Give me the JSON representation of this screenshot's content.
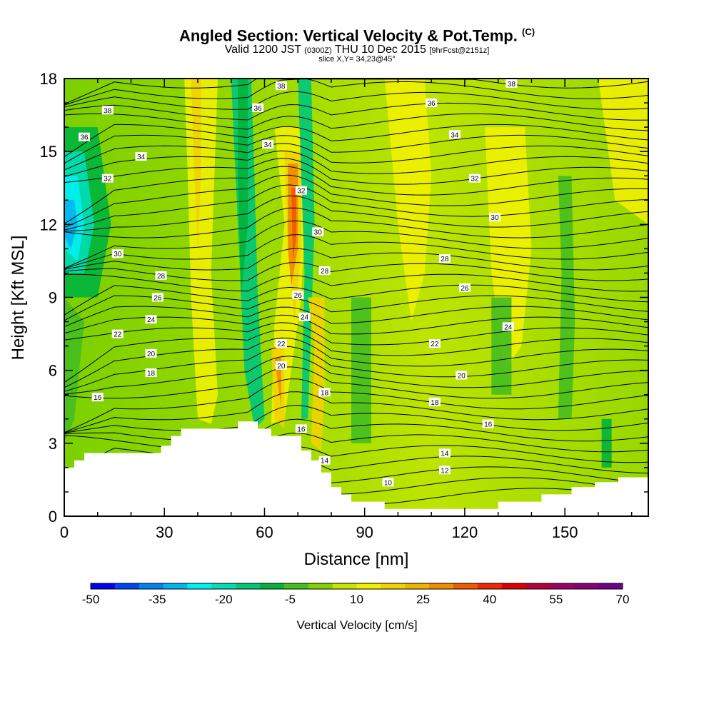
{
  "title": {
    "main": "Angled Section: Vertical Velocity & Pot.Temp.",
    "main_suffix": "(C)",
    "valid_a": "Valid 1200 JST",
    "valid_b": "(0300Z)",
    "valid_c": "THU 10 Dec 2015",
    "valid_d": "[9hrFcst@2151z]",
    "slice": "slice X,Y= 34,23@45°"
  },
  "chart_data": {
    "type": "heatmap",
    "xlabel": "Distance [nm]",
    "ylabel": "Height [Kft MSL]",
    "xlim": [
      0,
      175
    ],
    "ylim": [
      0,
      18
    ],
    "xticks": [
      0,
      30,
      60,
      90,
      120,
      150
    ],
    "yticks": [
      0,
      3,
      6,
      9,
      12,
      15,
      18
    ],
    "colorbar": {
      "label": "Vertical Velocity [cm/s]",
      "range": [
        -50,
        70
      ],
      "tick_labels": [
        -50,
        -35,
        -20,
        -5,
        10,
        25,
        40,
        55,
        70
      ],
      "colors": [
        "#0000f0",
        "#0046f0",
        "#0082f0",
        "#00b4f0",
        "#00f0f0",
        "#00dcb4",
        "#00c878",
        "#00b43c",
        "#46be1e",
        "#82d200",
        "#c8e600",
        "#f0f000",
        "#f0d200",
        "#f0b400",
        "#f08c00",
        "#f05a00",
        "#f02800",
        "#dc0000",
        "#b4003c",
        "#a00064",
        "#8c0078",
        "#6e008c"
      ]
    },
    "terrain": [
      [
        0,
        2
      ],
      [
        3,
        2
      ],
      [
        3,
        2.3
      ],
      [
        6,
        2.3
      ],
      [
        6,
        2.6
      ],
      [
        29,
        2.6
      ],
      [
        29,
        2.9
      ],
      [
        32,
        2.9
      ],
      [
        32,
        3.3
      ],
      [
        35,
        3.3
      ],
      [
        35,
        3.6
      ],
      [
        52,
        3.6
      ],
      [
        52,
        3.9
      ],
      [
        58,
        3.9
      ],
      [
        58,
        3.6
      ],
      [
        62,
        3.6
      ],
      [
        62,
        3.3
      ],
      [
        71,
        3.3
      ],
      [
        71,
        2.7
      ],
      [
        74,
        2.7
      ],
      [
        74,
        2.3
      ],
      [
        77,
        2.3
      ],
      [
        77,
        1.8
      ],
      [
        80,
        1.8
      ],
      [
        80,
        1.2
      ],
      [
        83,
        1.2
      ],
      [
        83,
        0.9
      ],
      [
        86,
        0.9
      ],
      [
        86,
        0.6
      ],
      [
        96,
        0.6
      ],
      [
        96,
        0.3
      ],
      [
        130,
        0.3
      ],
      [
        130,
        0.6
      ],
      [
        143,
        0.6
      ],
      [
        143,
        0.9
      ],
      [
        152,
        0.9
      ],
      [
        152,
        1.2
      ],
      [
        159,
        1.2
      ],
      [
        159,
        1.4
      ],
      [
        166,
        1.4
      ],
      [
        166,
        1.6
      ],
      [
        175,
        1.6
      ]
    ],
    "contour_labels": [
      {
        "x": 65,
        "y": 17.7,
        "t": "38"
      },
      {
        "x": 134,
        "y": 17.8,
        "t": "38"
      },
      {
        "x": 13,
        "y": 16.7,
        "t": "38"
      },
      {
        "x": 58,
        "y": 16.8,
        "t": "36"
      },
      {
        "x": 110,
        "y": 17.0,
        "t": "36"
      },
      {
        "x": 6,
        "y": 15.6,
        "t": "36"
      },
      {
        "x": 61,
        "y": 15.3,
        "t": "34"
      },
      {
        "x": 117,
        "y": 15.7,
        "t": "34"
      },
      {
        "x": 23,
        "y": 14.8,
        "t": "34"
      },
      {
        "x": 13,
        "y": 13.9,
        "t": "32"
      },
      {
        "x": 71,
        "y": 13.4,
        "t": "32"
      },
      {
        "x": 123,
        "y": 13.9,
        "t": "32"
      },
      {
        "x": 129,
        "y": 12.3,
        "t": "30"
      },
      {
        "x": 76,
        "y": 11.7,
        "t": "30"
      },
      {
        "x": 16,
        "y": 10.8,
        "t": "30"
      },
      {
        "x": 114,
        "y": 10.6,
        "t": "28"
      },
      {
        "x": 78,
        "y": 10.1,
        "t": "28"
      },
      {
        "x": 29,
        "y": 9.9,
        "t": "28"
      },
      {
        "x": 28,
        "y": 9.0,
        "t": "26"
      },
      {
        "x": 70,
        "y": 9.1,
        "t": "26"
      },
      {
        "x": 120,
        "y": 9.4,
        "t": "26"
      },
      {
        "x": 26,
        "y": 8.1,
        "t": "24"
      },
      {
        "x": 72,
        "y": 8.2,
        "t": "24"
      },
      {
        "x": 133,
        "y": 7.8,
        "t": "24"
      },
      {
        "x": 16,
        "y": 7.5,
        "t": "22"
      },
      {
        "x": 65,
        "y": 7.1,
        "t": "22"
      },
      {
        "x": 111,
        "y": 7.1,
        "t": "22"
      },
      {
        "x": 26,
        "y": 6.7,
        "t": "20"
      },
      {
        "x": 65,
        "y": 6.2,
        "t": "20"
      },
      {
        "x": 119,
        "y": 5.8,
        "t": "20"
      },
      {
        "x": 26,
        "y": 5.9,
        "t": "18"
      },
      {
        "x": 78,
        "y": 5.1,
        "t": "18"
      },
      {
        "x": 111,
        "y": 4.7,
        "t": "18"
      },
      {
        "x": 10,
        "y": 4.9,
        "t": "16"
      },
      {
        "x": 71,
        "y": 3.6,
        "t": "16"
      },
      {
        "x": 127,
        "y": 3.8,
        "t": "16"
      },
      {
        "x": 114,
        "y": 2.6,
        "t": "14"
      },
      {
        "x": 78,
        "y": 2.3,
        "t": "14"
      },
      {
        "x": 114,
        "y": 1.9,
        "t": "12"
      },
      {
        "x": 97,
        "y": 1.4,
        "t": "10"
      }
    ]
  }
}
